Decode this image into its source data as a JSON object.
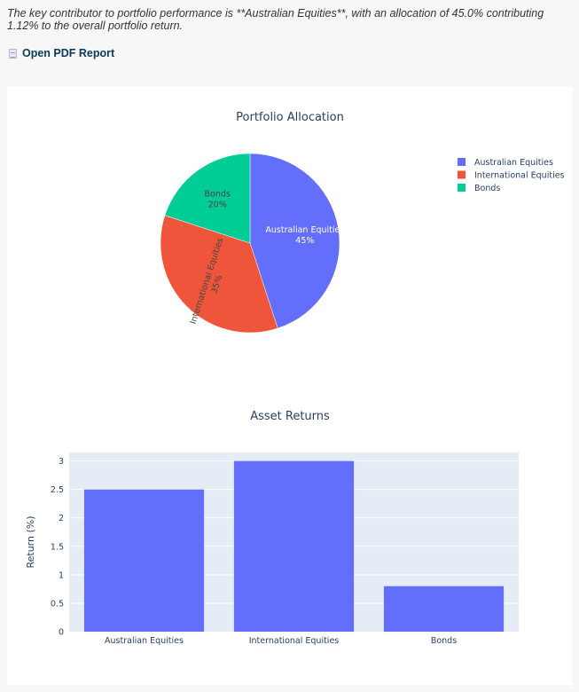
{
  "summary": {
    "text": "The key contributor to portfolio performance is **Australian Equities**, with an allocation of 45.0% contributing 1.12% to the overall portfolio return."
  },
  "report_link": {
    "label": "Open PDF Report",
    "icon": "document-icon"
  },
  "chart_data": [
    {
      "type": "pie",
      "title": "Portfolio Allocation",
      "categories": [
        "Australian Equities",
        "International Equities",
        "Bonds"
      ],
      "values": [
        45,
        35,
        20
      ],
      "colors": [
        "#636efa",
        "#ef553b",
        "#00cc96"
      ],
      "legend": "top-right"
    },
    {
      "type": "bar",
      "title": "Asset Returns",
      "categories": [
        "Australian Equities",
        "International Equities",
        "Bonds"
      ],
      "values": [
        2.5,
        3.0,
        0.8
      ],
      "ylabel": "Return (%)",
      "xlabel": "",
      "ylim": [
        0,
        3.15
      ],
      "yticks": [
        0,
        0.5,
        1,
        1.5,
        2,
        2.5,
        3
      ],
      "yticklabels": [
        "0",
        "0.5",
        "1",
        "1.5",
        "2",
        "2.5",
        "3"
      ],
      "color": "#636efa",
      "grid": true
    }
  ]
}
